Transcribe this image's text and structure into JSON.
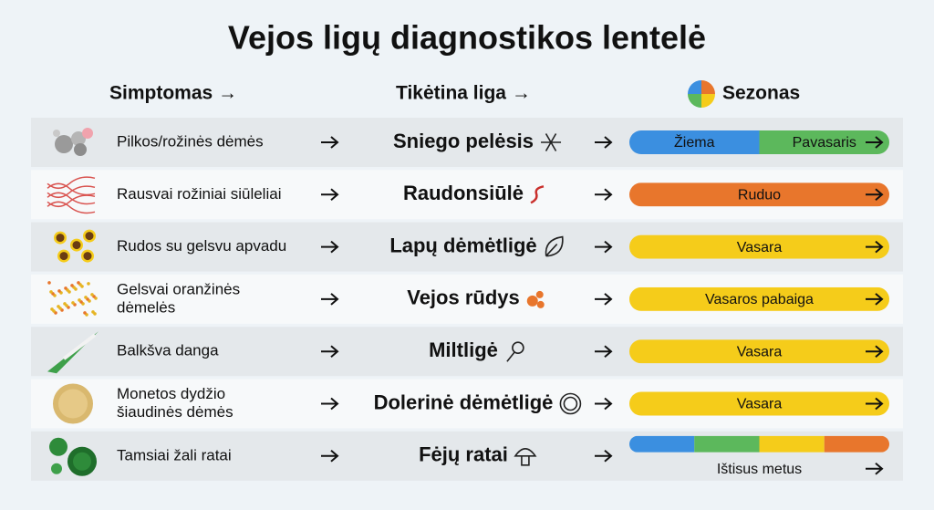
{
  "header": {
    "title": "Vejos ligų diagnostikos lentelė"
  },
  "columns": [
    "Simptomas →",
    "Tikėtina liga →",
    "Sezonas"
  ],
  "rows": [
    {
      "symptom": [
        "Pilkos/rožinės dėmės"
      ],
      "disease": "Sniego pelėsis",
      "season": {
        "parts": [
          {
            "label": "Žiema",
            "color": "#3b8fe0"
          },
          {
            "label": "Pavasaris",
            "color": "#5cb85c"
          }
        ]
      }
    },
    {
      "symptom": [
        "Rausvai rožiniai siūleliai"
      ],
      "disease": "Raudonsiūlė",
      "season": {
        "parts": [
          {
            "label": "Ruduo",
            "color": "#e8762c"
          }
        ]
      }
    },
    {
      "symptom": [
        "Rudos su gelsvu apvadu"
      ],
      "disease": "Lapų dėmėtligė",
      "season": {
        "parts": [
          {
            "label": "Vasara",
            "color": "#f5cc1a"
          }
        ]
      }
    },
    {
      "symptom": [
        "Gelsvai oranžinės",
        "dėmelės"
      ],
      "disease": "Vejos rūdys",
      "season": {
        "parts": [
          {
            "label": "Vasaros pabaiga",
            "color": "#f5cc1a"
          }
        ]
      }
    },
    {
      "symptom": [
        "Balkšva danga"
      ],
      "disease": "Miltligė",
      "season": {
        "parts": [
          {
            "label": "Vasara",
            "color": "#f5cc1a"
          }
        ]
      }
    },
    {
      "symptom": [
        "Monetos dydžio",
        "šiaudinės dėmės"
      ],
      "disease": "Dolerinė dėmėtligė",
      "season": {
        "parts": [
          {
            "label": "Vasara",
            "color": "#f5cc1a"
          }
        ]
      }
    },
    {
      "symptom": [
        "Tamsiai žali ratai"
      ],
      "disease": "Fėjų ratai",
      "season": {
        "label": "Ištisus metus",
        "colors": [
          "#3b8fe0",
          "#5cb85c",
          "#f5cc1a",
          "#e8762c"
        ]
      }
    }
  ]
}
